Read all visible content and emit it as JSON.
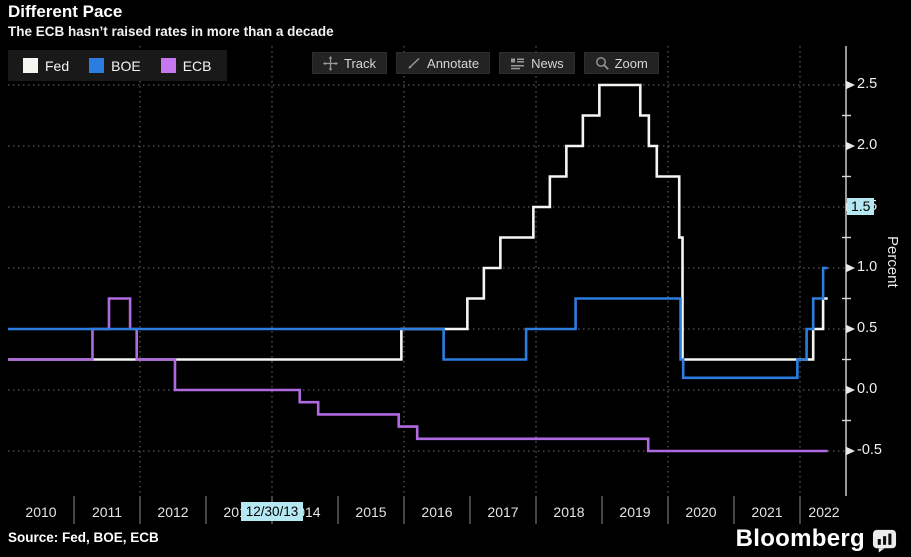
{
  "header": {
    "title": "Different Pace",
    "subtitle": "The ECB hasn’t raised rates in more than a decade"
  },
  "legend": {
    "items": [
      {
        "label": "Fed",
        "color": "#f5f5f2"
      },
      {
        "label": "BOE",
        "color": "#2b7de0"
      },
      {
        "label": "ECB",
        "color": "#c678f0"
      }
    ]
  },
  "toolbar": {
    "buttons": [
      {
        "label": "Track",
        "icon": "track-icon"
      },
      {
        "label": "Annotate",
        "icon": "annotate-icon"
      },
      {
        "label": "News",
        "icon": "news-icon"
      },
      {
        "label": "Zoom",
        "icon": "zoom-icon"
      }
    ]
  },
  "axis": {
    "y_label": "Percent",
    "y_ticks": [
      {
        "label": "2.5",
        "value": 2.5
      },
      {
        "label": "2.0",
        "value": 2.0
      },
      {
        "label": "1.5",
        "value": 1.5
      },
      {
        "label": "1.0",
        "value": 1.0
      },
      {
        "label": "0.5",
        "value": 0.5
      },
      {
        "label": "0.0",
        "value": 0.0
      },
      {
        "label": "-0.5",
        "value": -0.5
      }
    ],
    "y_minor": [
      2.25,
      1.75,
      1.25,
      0.75,
      0.25,
      -0.25
    ],
    "y_highlight": {
      "label": "1.5",
      "value": 1.5
    },
    "x_ticks": [
      {
        "label": "2010",
        "year": 2010
      },
      {
        "label": "2011",
        "year": 2011
      },
      {
        "label": "2012",
        "year": 2012
      },
      {
        "label": "2013",
        "year": 2013
      },
      {
        "label": "2014",
        "year": 2014
      },
      {
        "label": "2015",
        "year": 2015
      },
      {
        "label": "2016",
        "year": 2016
      },
      {
        "label": "2017",
        "year": 2017
      },
      {
        "label": "2018",
        "year": 2018
      },
      {
        "label": "2019",
        "year": 2019
      },
      {
        "label": "2020",
        "year": 2020
      },
      {
        "label": "2021",
        "year": 2021
      },
      {
        "label": "2022",
        "year": 2022
      }
    ],
    "x_highlight": {
      "label": "12/30/13",
      "year": 2014.0
    }
  },
  "footer": {
    "source": "Source: Fed, BOE, ECB",
    "brand": "Bloomberg",
    "brand_icon": "bar-chart-icon"
  },
  "chart_data": {
    "type": "line",
    "step": true,
    "title": "Different Pace",
    "subtitle": "The ECB hasn’t raised rates in more than a decade",
    "ylabel": "Percent",
    "ylim": [
      -0.75,
      2.75
    ],
    "xlim": [
      2010.0,
      2022.7
    ],
    "x_unit": "decimal_year",
    "x_end": 2022.42,
    "grid": {
      "h_values": [
        2.5,
        2.0,
        1.5,
        1.0,
        0.5,
        0.0,
        -0.5
      ],
      "v_years": [
        2012,
        2014,
        2016,
        2018,
        2020,
        2022
      ]
    },
    "legend_position": "top-left",
    "series": [
      {
        "name": "Fed",
        "color": "#f5f5f2",
        "points": [
          [
            2010.0,
            0.25
          ],
          [
            2015.96,
            0.5
          ],
          [
            2016.96,
            0.75
          ],
          [
            2017.21,
            1.0
          ],
          [
            2017.46,
            1.25
          ],
          [
            2017.96,
            1.5
          ],
          [
            2018.21,
            1.75
          ],
          [
            2018.46,
            2.0
          ],
          [
            2018.71,
            2.25
          ],
          [
            2018.96,
            2.5
          ],
          [
            2019.58,
            2.25
          ],
          [
            2019.71,
            2.0
          ],
          [
            2019.83,
            1.75
          ],
          [
            2020.17,
            1.25
          ],
          [
            2020.22,
            0.25
          ],
          [
            2022.2,
            0.5
          ],
          [
            2022.35,
            0.75
          ]
        ]
      },
      {
        "name": "ECB",
        "color": "#b06ae0",
        "points": [
          [
            2010.0,
            0.25
          ],
          [
            2011.28,
            0.5
          ],
          [
            2011.53,
            0.75
          ],
          [
            2011.85,
            0.5
          ],
          [
            2011.95,
            0.25
          ],
          [
            2012.53,
            0.0
          ],
          [
            2014.42,
            -0.1
          ],
          [
            2014.7,
            -0.2
          ],
          [
            2015.92,
            -0.3
          ],
          [
            2016.2,
            -0.4
          ],
          [
            2019.7,
            -0.5
          ]
        ]
      },
      {
        "name": "BOE",
        "color": "#2b7de0",
        "points": [
          [
            2010.0,
            0.5
          ],
          [
            2016.6,
            0.25
          ],
          [
            2017.85,
            0.5
          ],
          [
            2018.6,
            0.75
          ],
          [
            2020.19,
            0.25
          ],
          [
            2020.23,
            0.1
          ],
          [
            2021.96,
            0.25
          ],
          [
            2022.1,
            0.5
          ],
          [
            2022.2,
            0.75
          ],
          [
            2022.35,
            1.0
          ]
        ]
      }
    ]
  }
}
